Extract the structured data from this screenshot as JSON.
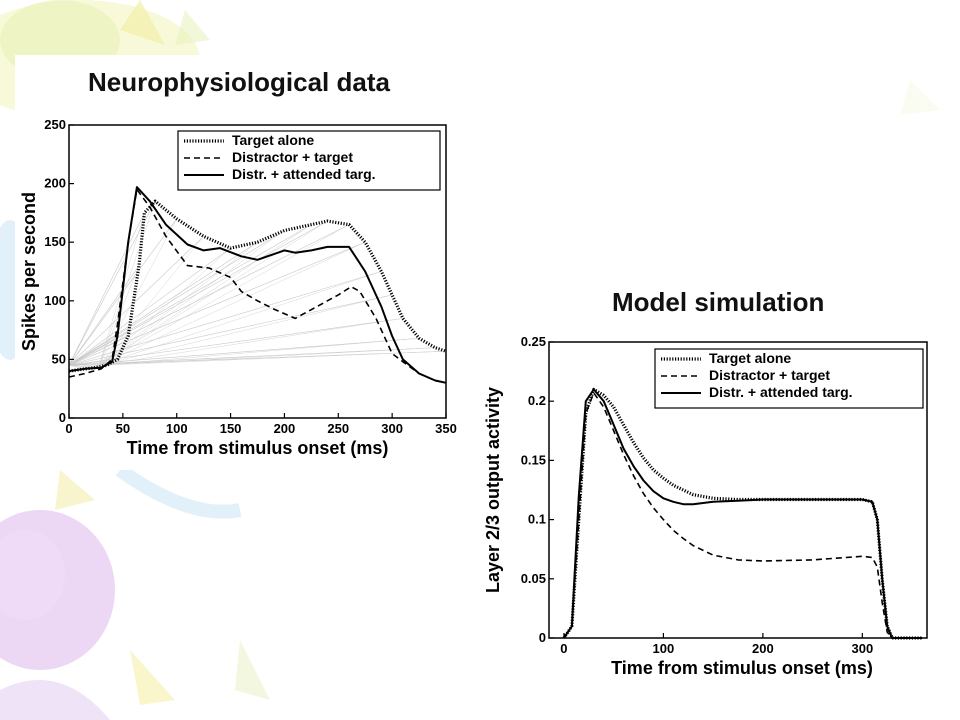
{
  "slide": {
    "left_title": "Neurophysiological data",
    "right_title": "Model simulation"
  },
  "chart_data": [
    {
      "type": "line",
      "title": "Neurophysiological data",
      "xlabel": "Time from stimulus onset (ms)",
      "ylabel": "Spikes per second",
      "xlim": [
        0,
        350
      ],
      "ylim": [
        0,
        250
      ],
      "xticks": [
        0,
        50,
        100,
        150,
        200,
        250,
        300,
        350
      ],
      "yticks": [
        0,
        50,
        100,
        150,
        200,
        250
      ],
      "legend_position": "top-right",
      "grid": false,
      "series": [
        {
          "name": "Target alone",
          "style": "dotted",
          "x": [
            0,
            15,
            25,
            35,
            45,
            55,
            65,
            70,
            80,
            100,
            125,
            150,
            175,
            200,
            225,
            240,
            260,
            275,
            290,
            300,
            310,
            325,
            340,
            350
          ],
          "y": [
            40,
            42,
            43,
            45,
            50,
            70,
            130,
            175,
            185,
            170,
            155,
            145,
            150,
            160,
            165,
            168,
            165,
            150,
            125,
            105,
            85,
            68,
            60,
            57
          ]
        },
        {
          "name": "Distractor + target",
          "style": "dashed",
          "x": [
            0,
            15,
            30,
            40,
            45,
            55,
            63,
            75,
            90,
            110,
            130,
            150,
            160,
            175,
            190,
            210,
            230,
            250,
            262,
            270,
            285,
            300,
            310,
            325,
            340,
            350
          ],
          "y": [
            35,
            38,
            42,
            50,
            80,
            150,
            195,
            180,
            155,
            130,
            128,
            120,
            108,
            100,
            93,
            85,
            95,
            105,
            112,
            108,
            85,
            55,
            48,
            38,
            32,
            30
          ]
        },
        {
          "name": "Distr. + attended targ.",
          "style": "solid",
          "x": [
            0,
            15,
            30,
            40,
            45,
            55,
            63,
            75,
            90,
            110,
            125,
            140,
            160,
            175,
            200,
            210,
            225,
            240,
            260,
            275,
            290,
            300,
            310,
            325,
            340,
            350
          ],
          "y": [
            40,
            42,
            43,
            48,
            70,
            150,
            197,
            185,
            165,
            148,
            143,
            145,
            138,
            135,
            143,
            141,
            143,
            146,
            146,
            125,
            95,
            70,
            50,
            38,
            32,
            30
          ]
        }
      ]
    },
    {
      "type": "line",
      "title": "Model simulation",
      "xlabel": "Time from stimulus onset (ms)",
      "ylabel": "Layer 2/3 output activity",
      "xlim": [
        -15,
        365
      ],
      "ylim": [
        0,
        0.25
      ],
      "xticks": [
        0,
        100,
        200,
        300
      ],
      "yticks": [
        0,
        0.05,
        0.1,
        0.15,
        0.2,
        0.25
      ],
      "ytick_labels": [
        "0",
        "0.05",
        "0.1",
        "0.15",
        "0.2",
        "0.25"
      ],
      "legend_position": "top-right",
      "grid": false,
      "series": [
        {
          "name": "Target alone",
          "style": "dotted",
          "x": [
            0,
            8,
            15,
            22,
            30,
            40,
            50,
            60,
            70,
            80,
            90,
            100,
            110,
            120,
            130,
            150,
            175,
            200,
            250,
            300,
            310,
            315,
            320,
            325,
            330,
            340,
            360
          ],
          "y": [
            0,
            0.01,
            0.1,
            0.19,
            0.21,
            0.205,
            0.195,
            0.18,
            0.165,
            0.152,
            0.142,
            0.135,
            0.129,
            0.125,
            0.121,
            0.118,
            0.117,
            0.117,
            0.117,
            0.117,
            0.115,
            0.1,
            0.05,
            0.01,
            0,
            0,
            0
          ]
        },
        {
          "name": "Distractor + target",
          "style": "dashed",
          "x": [
            0,
            8,
            15,
            22,
            30,
            40,
            50,
            60,
            70,
            80,
            90,
            100,
            110,
            120,
            130,
            150,
            175,
            200,
            250,
            300,
            310,
            315,
            320,
            325,
            330,
            340,
            360
          ],
          "y": [
            0,
            0.01,
            0.1,
            0.19,
            0.207,
            0.195,
            0.175,
            0.155,
            0.137,
            0.122,
            0.11,
            0.1,
            0.091,
            0.084,
            0.078,
            0.07,
            0.066,
            0.065,
            0.066,
            0.069,
            0.068,
            0.06,
            0.03,
            0.005,
            0,
            0,
            0
          ]
        },
        {
          "name": "Distr. + attended targ.",
          "style": "solid",
          "x": [
            0,
            8,
            15,
            22,
            30,
            40,
            50,
            60,
            70,
            80,
            90,
            100,
            110,
            120,
            130,
            150,
            175,
            200,
            250,
            300,
            310,
            315,
            320,
            325,
            330,
            340,
            360
          ],
          "y": [
            0,
            0.01,
            0.12,
            0.2,
            0.21,
            0.2,
            0.18,
            0.16,
            0.145,
            0.133,
            0.124,
            0.118,
            0.115,
            0.113,
            0.113,
            0.115,
            0.116,
            0.117,
            0.117,
            0.117,
            0.115,
            0.1,
            0.05,
            0.01,
            0,
            0,
            0
          ]
        }
      ]
    }
  ]
}
